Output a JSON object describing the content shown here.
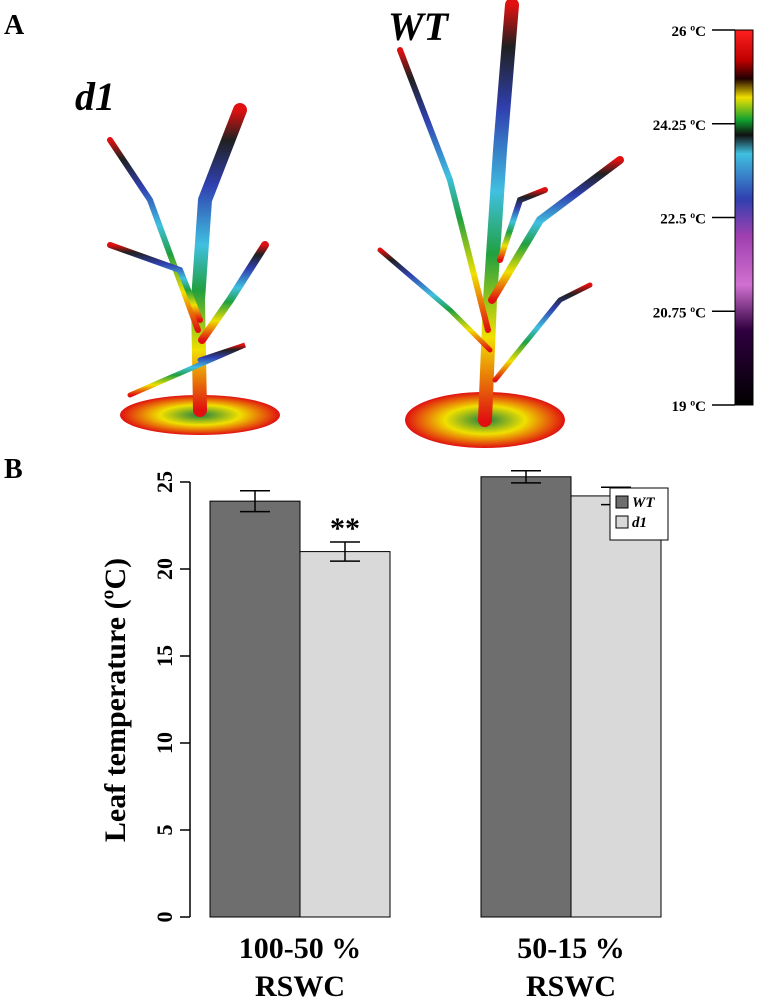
{
  "panel_a": {
    "label": "A",
    "plant_labels": [
      "d1",
      "WT"
    ],
    "colorbar": {
      "clim": [
        19,
        26
      ],
      "ticks": [
        {
          "value": 26,
          "label": "26 ºC"
        },
        {
          "value": 24.25,
          "label": "24.25 ºC"
        },
        {
          "value": 22.5,
          "label": "22.5 ºC"
        },
        {
          "value": 20.75,
          "label": "20.75 ºC"
        },
        {
          "value": 19,
          "label": "19 ºC"
        }
      ]
    }
  },
  "panel_b_label": "B",
  "chart_data": {
    "type": "bar",
    "y_label": "Leaf temperature (ºC)",
    "categories": [
      "100-50 %\nRSWC",
      "50-15 %\nRSWC"
    ],
    "series": [
      {
        "name": "WT",
        "color": "#6e6e6e",
        "values": [
          23.9,
          25.3
        ],
        "errors": [
          0.6,
          0.35
        ]
      },
      {
        "name": "d1",
        "color": "#d9d9d9",
        "values": [
          21.0,
          24.2
        ],
        "errors": [
          0.55,
          0.5
        ]
      }
    ],
    "annotations": [
      {
        "text": "**",
        "series": 1,
        "category": 0
      }
    ],
    "ylim": [
      0,
      25
    ],
    "yticks": [
      0,
      5,
      10,
      15,
      20,
      25
    ],
    "legend": "top-right"
  }
}
